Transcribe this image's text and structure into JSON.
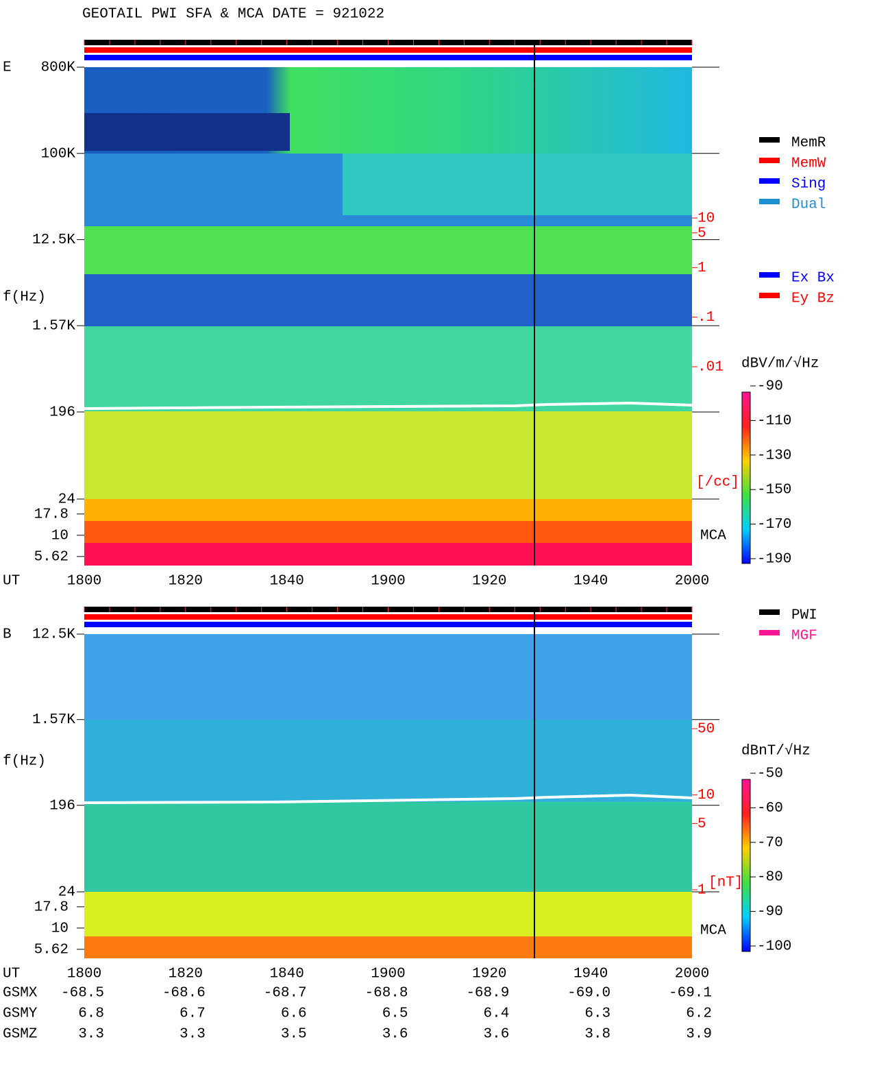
{
  "title": "GEOTAIL  PWI SFA & MCA   DATE = 921022",
  "panels": [
    {
      "label": "E",
      "ylabel": "f(Hz)",
      "xlabel": "UT",
      "log_scale": true,
      "ylim": [
        24,
        800000
      ],
      "yticks": [
        {
          "value": 800000,
          "label": "800K"
        },
        {
          "value": 100000,
          "label": "100K"
        },
        {
          "value": 12500,
          "label": "12.5K"
        },
        {
          "value": 1570,
          "label": "1.57K"
        },
        196,
        24
      ],
      "mca_ylim": [
        4.4,
        26.7
      ],
      "mca_yticks": [
        17.8,
        10,
        5.62
      ],
      "mca_label": "MCA",
      "xticks": [
        "1800",
        "1820",
        "1840",
        "1900",
        "1920",
        "1940",
        "2000"
      ],
      "side_scale": {
        "ylim": [
          0.01,
          10
        ],
        "ticks": [
          10,
          5,
          1,
          {
            "value": 0.1,
            "label": ".1"
          },
          {
            "value": 0.01,
            "label": ".01"
          }
        ],
        "unit": "[/cc]",
        "color": "#ff0000"
      },
      "legend": [
        {
          "name": "MemR",
          "color": "#000000"
        },
        {
          "name": "MemW",
          "color": "#ff0000"
        },
        {
          "name": "Sing",
          "color": "#0000ff"
        },
        {
          "name": "Dual",
          "color": "#1e8fd0"
        }
      ],
      "legend2": [
        {
          "name": "Ex Bx",
          "color": "#0000ff"
        },
        {
          "name": "Ey Bz",
          "color": "#ff0000"
        }
      ],
      "colorbar": {
        "label": "dBV/m/√Hz",
        "lim": [
          -90,
          -190
        ],
        "ticks": [
          -90,
          -110,
          -130,
          -150,
          -170,
          -190
        ]
      }
    },
    {
      "label": "B",
      "ylabel": "f(Hz)",
      "xlabel": "UT",
      "log_scale": true,
      "ylim": [
        24,
        12500
      ],
      "yticks": [
        {
          "value": 12500,
          "label": "12.5K"
        },
        {
          "value": 1570,
          "label": "1.57K"
        },
        196,
        24
      ],
      "mca_ylim": [
        4.4,
        26.7
      ],
      "mca_yticks": [
        17.8,
        10,
        5.62
      ],
      "mca_label": "MCA",
      "xticks": [
        "1800",
        "1820",
        "1840",
        "1900",
        "1920",
        "1940",
        "2000"
      ],
      "side_scale": {
        "ylim": [
          1,
          50
        ],
        "ticks": [
          50,
          10,
          5,
          1
        ],
        "unit": "[nT]",
        "color": "#ff0000"
      },
      "legend": [
        {
          "name": "PWI",
          "color": "#000000"
        },
        {
          "name": "MGF",
          "color": "#ff1493"
        }
      ],
      "legend2": [],
      "colorbar": {
        "label": "dBnT/√Hz",
        "lim": [
          -50,
          -100
        ],
        "ticks": [
          -50,
          -60,
          -70,
          -80,
          -90,
          -100
        ]
      }
    }
  ],
  "orbit": {
    "rows": [
      {
        "name": "GSMX",
        "values": [
          "-68.5",
          "-68.6",
          "-68.7",
          "-68.8",
          "-68.9",
          "-69.0",
          "-69.1"
        ]
      },
      {
        "name": "GSMY",
        "values": [
          "6.8",
          "6.7",
          "6.6",
          "6.5",
          "6.4",
          "6.3",
          "6.2"
        ]
      },
      {
        "name": "GSMZ",
        "values": [
          "3.3",
          "3.3",
          "3.5",
          "3.6",
          "3.6",
          "3.8",
          "3.9"
        ]
      }
    ]
  }
}
